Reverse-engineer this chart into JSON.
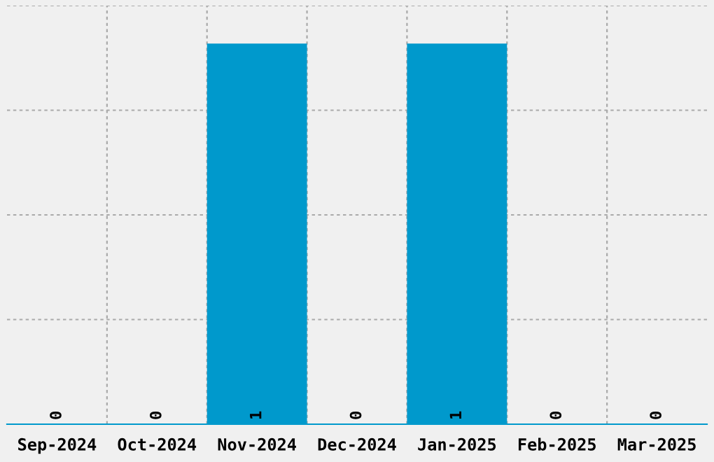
{
  "chart_data": {
    "type": "bar",
    "categories": [
      "Sep-2024",
      "Oct-2024",
      "Nov-2024",
      "Dec-2024",
      "Jan-2025",
      "Feb-2025",
      "Mar-2025"
    ],
    "values": [
      0,
      0,
      1,
      0,
      1,
      0,
      0
    ],
    "color": "#0099cc",
    "ylim": [
      0,
      1.1
    ],
    "yticks": [
      {
        "value": 0,
        "label": null
      },
      {
        "value": 0.275,
        "label": null
      },
      {
        "value": 0.55,
        "label": null
      },
      {
        "value": 0.825,
        "label": null
      },
      {
        "value": 1.1,
        "label": null
      }
    ],
    "grid": true,
    "data_labels": true,
    "legend": false
  }
}
